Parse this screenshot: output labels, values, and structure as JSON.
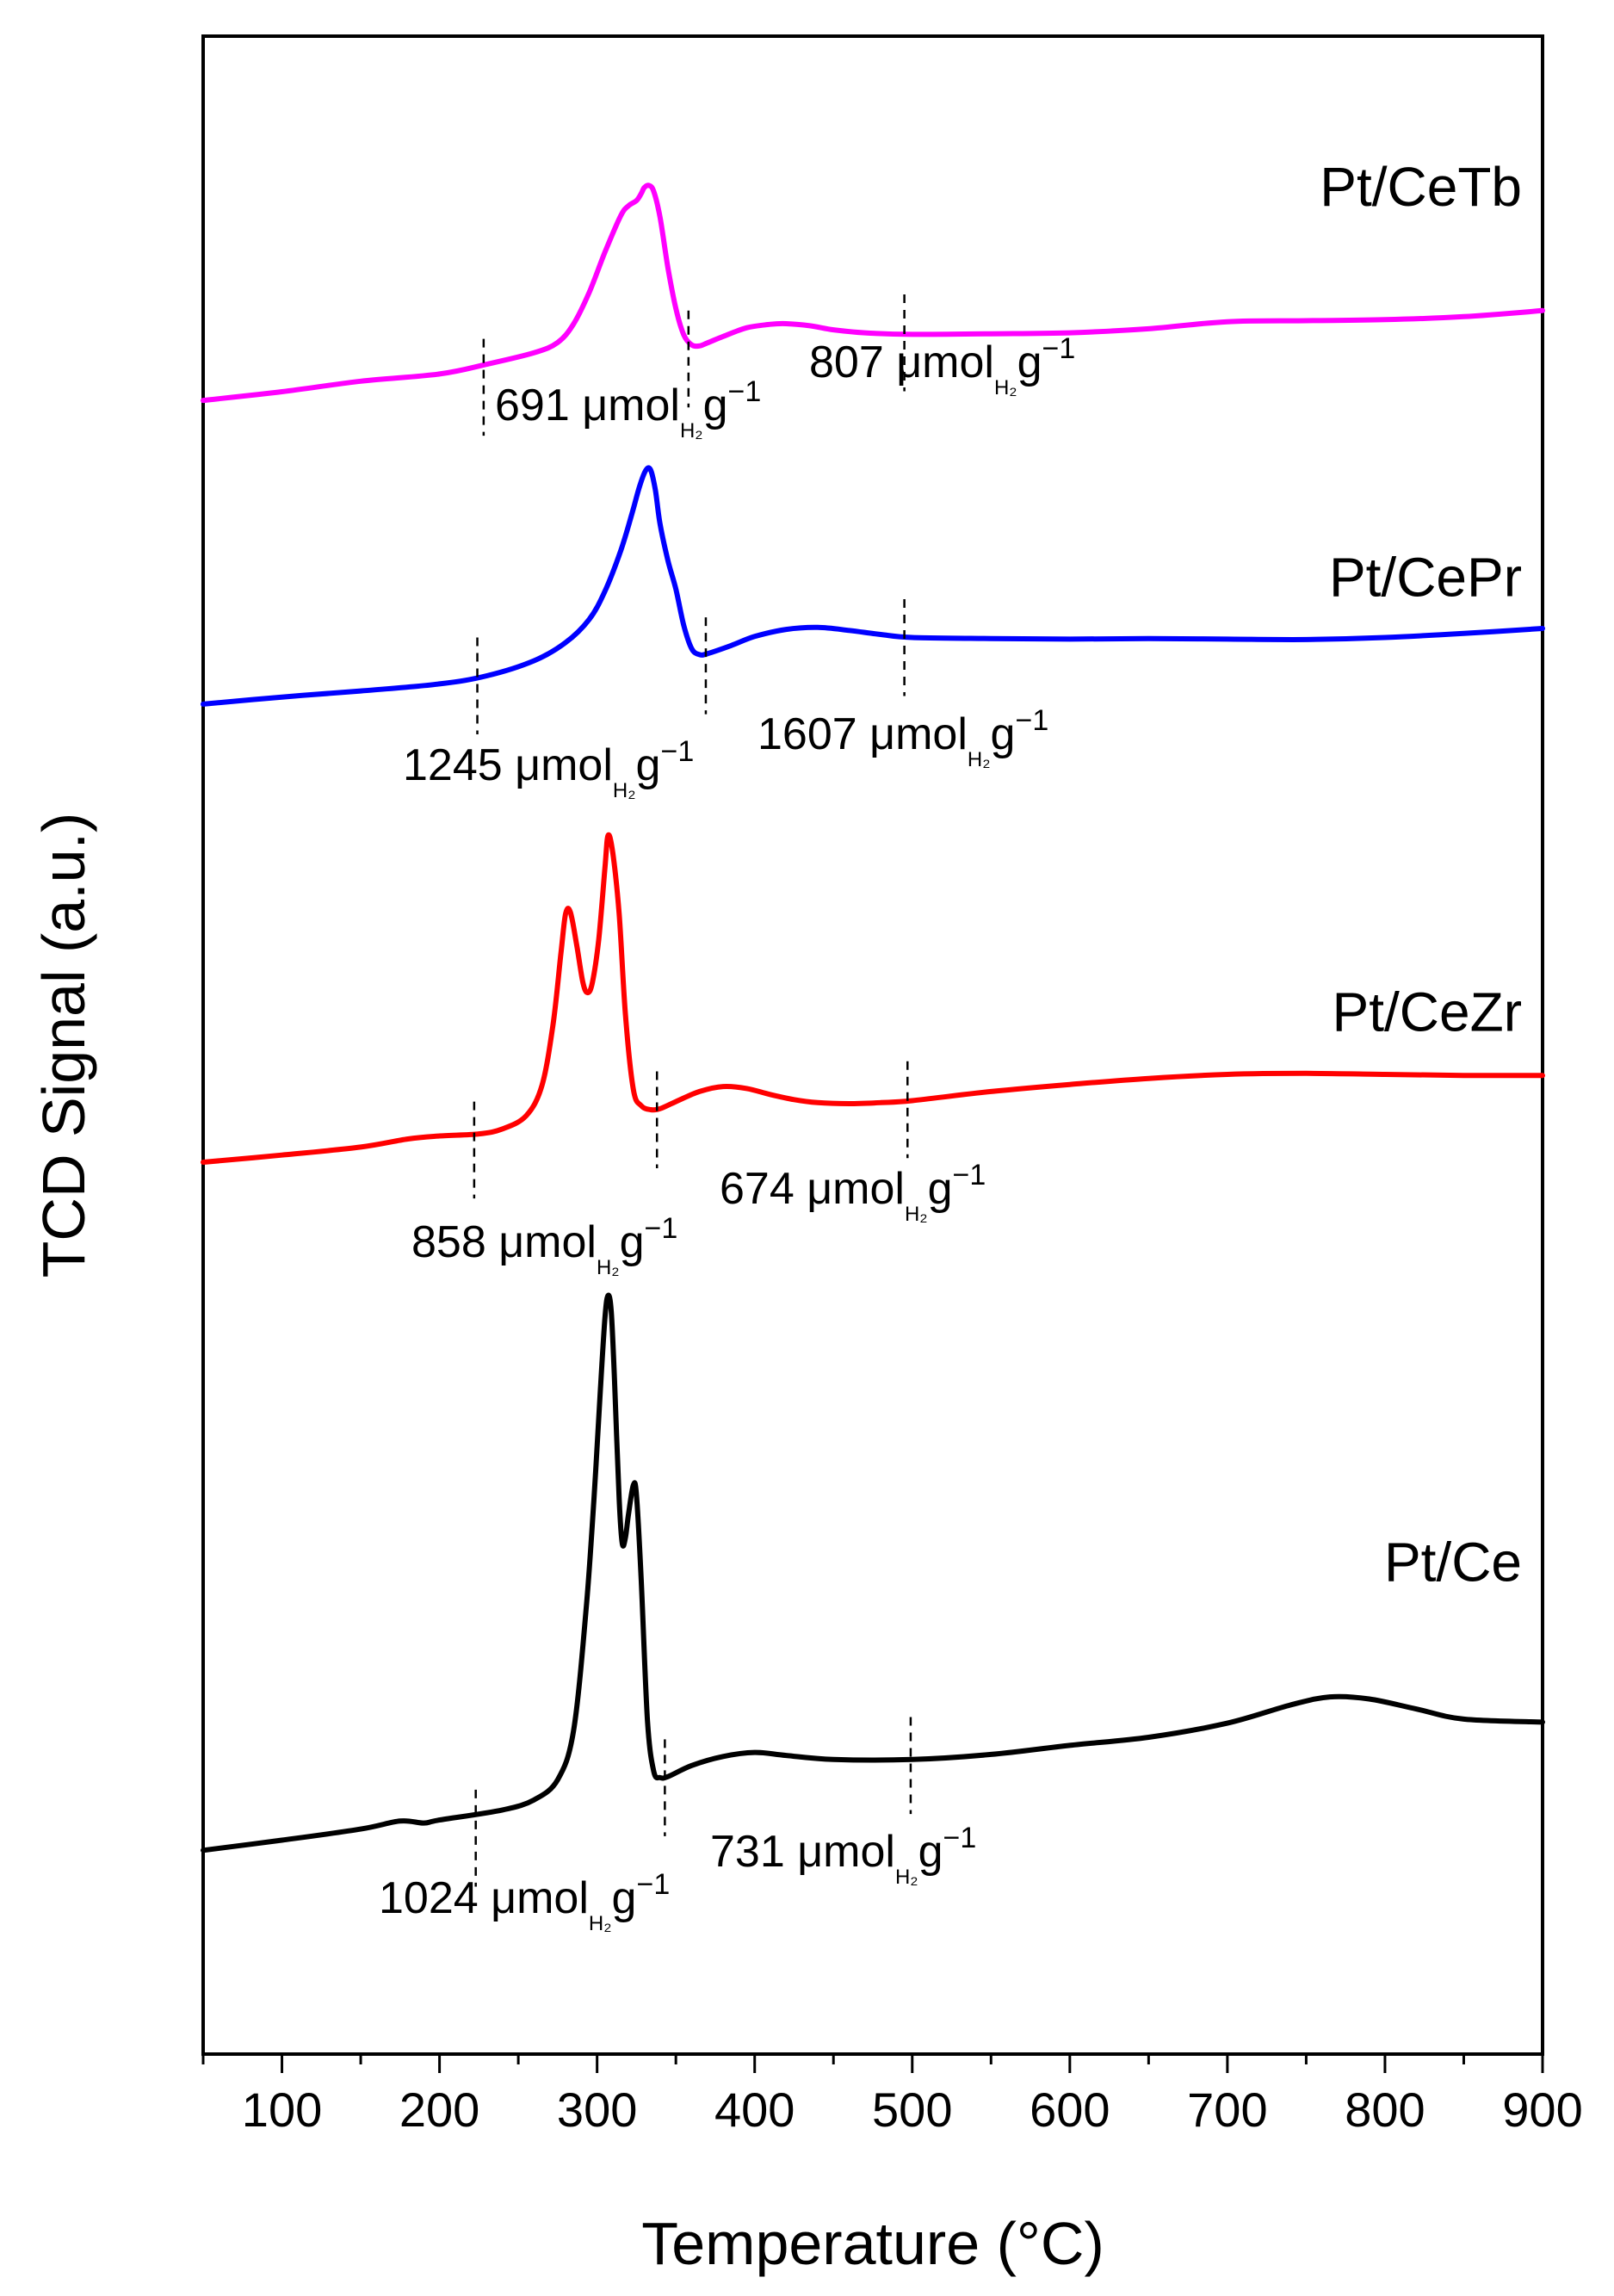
{
  "chart_data": {
    "type": "line",
    "title": "",
    "xlabel": "Temperature (°C)",
    "ylabel": "TCD Signal (a.u.)",
    "xlim": [
      50,
      900
    ],
    "xticks": [
      100,
      200,
      300,
      400,
      500,
      600,
      700,
      800,
      900
    ],
    "ylim": [
      0,
      100
    ],
    "yticks": [],
    "grid": false,
    "series": [
      {
        "name": "Pt/CeTb",
        "color": "#ff00ff",
        "points": [
          [
            50,
            81.95
          ],
          [
            100,
            82.38
          ],
          [
            150,
            82.9
          ],
          [
            200,
            83.26
          ],
          [
            230,
            83.74
          ],
          [
            260,
            84.31
          ],
          [
            275,
            84.82
          ],
          [
            285,
            85.73
          ],
          [
            295,
            87.3
          ],
          [
            305,
            89.3
          ],
          [
            315,
            91.1
          ],
          [
            320,
            91.6
          ],
          [
            325,
            91.85
          ],
          [
            328,
            92.2
          ],
          [
            330,
            92.5
          ],
          [
            333,
            92.6
          ],
          [
            336,
            92.3
          ],
          [
            340,
            91.0
          ],
          [
            345,
            88.5
          ],
          [
            350,
            86.5
          ],
          [
            355,
            85.2
          ],
          [
            360,
            84.7
          ],
          [
            365,
            84.65
          ],
          [
            370,
            84.8
          ],
          [
            380,
            85.12
          ],
          [
            395,
            85.55
          ],
          [
            410,
            85.72
          ],
          [
            420,
            85.75
          ],
          [
            435,
            85.65
          ],
          [
            450,
            85.45
          ],
          [
            470,
            85.3
          ],
          [
            500,
            85.22
          ],
          [
            550,
            85.25
          ],
          [
            600,
            85.3
          ],
          [
            650,
            85.5
          ],
          [
            700,
            85.85
          ],
          [
            750,
            85.9
          ],
          [
            800,
            85.95
          ],
          [
            850,
            86.1
          ],
          [
            900,
            86.4
          ]
        ],
        "label_lines": [
          [
            "691 μmol",
            "H₂",
            "g",
            "−1"
          ],
          [
            "807 μmol",
            "H₂",
            "g",
            "−1"
          ]
        ]
      },
      {
        "name": "Pt/CePr",
        "color": "#0000ff",
        "points": [
          [
            50,
            66.9
          ],
          [
            100,
            67.25
          ],
          [
            150,
            67.55
          ],
          [
            200,
            67.9
          ],
          [
            230,
            68.3
          ],
          [
            260,
            69.05
          ],
          [
            280,
            69.95
          ],
          [
            295,
            71.1
          ],
          [
            305,
            72.5
          ],
          [
            315,
            74.5
          ],
          [
            322,
            76.3
          ],
          [
            327,
            77.7
          ],
          [
            331,
            78.5
          ],
          [
            334,
            78.5
          ],
          [
            337,
            77.5
          ],
          [
            340,
            75.8
          ],
          [
            345,
            74.0
          ],
          [
            350,
            72.6
          ],
          [
            355,
            70.8
          ],
          [
            360,
            69.65
          ],
          [
            365,
            69.35
          ],
          [
            370,
            69.4
          ],
          [
            385,
            69.8
          ],
          [
            400,
            70.25
          ],
          [
            420,
            70.6
          ],
          [
            440,
            70.7
          ],
          [
            460,
            70.55
          ],
          [
            480,
            70.35
          ],
          [
            500,
            70.2
          ],
          [
            550,
            70.15
          ],
          [
            600,
            70.12
          ],
          [
            650,
            70.15
          ],
          [
            700,
            70.12
          ],
          [
            750,
            70.1
          ],
          [
            800,
            70.2
          ],
          [
            850,
            70.4
          ],
          [
            900,
            70.65
          ]
        ],
        "label_lines": [
          [
            "1245 μmol",
            "H₂",
            "g",
            "−1"
          ],
          [
            "1607 μmol",
            "H₂",
            "g",
            "−1"
          ]
        ]
      },
      {
        "name": "Pt/CeZr",
        "color": "#ff0000",
        "points": [
          [
            50,
            44.2
          ],
          [
            100,
            44.55
          ],
          [
            150,
            44.95
          ],
          [
            180,
            45.35
          ],
          [
            200,
            45.5
          ],
          [
            225,
            45.6
          ],
          [
            240,
            45.85
          ],
          [
            255,
            46.5
          ],
          [
            265,
            48.0
          ],
          [
            272,
            51.0
          ],
          [
            277,
            54.5
          ],
          [
            280,
            56.5
          ],
          [
            283,
            56.6
          ],
          [
            287,
            55.0
          ],
          [
            291,
            53.1
          ],
          [
            294,
            52.6
          ],
          [
            297,
            53.1
          ],
          [
            301,
            55.2
          ],
          [
            305,
            58.8
          ],
          [
            307,
            60.4
          ],
          [
            310,
            59.5
          ],
          [
            314,
            56.5
          ],
          [
            318,
            51.5
          ],
          [
            323,
            47.8
          ],
          [
            328,
            47.0
          ],
          [
            334,
            46.8
          ],
          [
            340,
            46.85
          ],
          [
            350,
            47.2
          ],
          [
            365,
            47.7
          ],
          [
            380,
            47.95
          ],
          [
            395,
            47.85
          ],
          [
            410,
            47.55
          ],
          [
            425,
            47.3
          ],
          [
            440,
            47.15
          ],
          [
            460,
            47.1
          ],
          [
            480,
            47.15
          ],
          [
            500,
            47.25
          ],
          [
            550,
            47.7
          ],
          [
            600,
            48.05
          ],
          [
            650,
            48.35
          ],
          [
            700,
            48.55
          ],
          [
            750,
            48.6
          ],
          [
            800,
            48.55
          ],
          [
            850,
            48.5
          ],
          [
            900,
            48.5
          ]
        ],
        "label_lines": [
          [
            "858 μmol",
            "H₂",
            "g",
            "−1"
          ],
          [
            "674 μmol",
            "H₂",
            "g",
            "−1"
          ]
        ]
      },
      {
        "name": "Pt/Ce",
        "color": "#000000",
        "points": [
          [
            50,
            10.1
          ],
          [
            100,
            10.6
          ],
          [
            150,
            11.15
          ],
          [
            175,
            11.55
          ],
          [
            190,
            11.45
          ],
          [
            200,
            11.6
          ],
          [
            240,
            12.1
          ],
          [
            260,
            12.6
          ],
          [
            275,
            13.6
          ],
          [
            285,
            16.0
          ],
          [
            293,
            22.0
          ],
          [
            298,
            27.5
          ],
          [
            302,
            32.8
          ],
          [
            305,
            36.5
          ],
          [
            307,
            37.6
          ],
          [
            309,
            36.8
          ],
          [
            311,
            33.5
          ],
          [
            314,
            27.5
          ],
          [
            316,
            25.3
          ],
          [
            318,
            25.6
          ],
          [
            320,
            26.8
          ],
          [
            323,
            28.2
          ],
          [
            325,
            27.7
          ],
          [
            328,
            23.5
          ],
          [
            332,
            16.5
          ],
          [
            336,
            14.0
          ],
          [
            340,
            13.7
          ],
          [
            345,
            13.75
          ],
          [
            360,
            14.3
          ],
          [
            380,
            14.75
          ],
          [
            400,
            14.95
          ],
          [
            420,
            14.8
          ],
          [
            450,
            14.6
          ],
          [
            500,
            14.6
          ],
          [
            550,
            14.85
          ],
          [
            600,
            15.3
          ],
          [
            650,
            15.7
          ],
          [
            700,
            16.4
          ],
          [
            740,
            17.3
          ],
          [
            765,
            17.7
          ],
          [
            790,
            17.6
          ],
          [
            820,
            17.1
          ],
          [
            850,
            16.6
          ],
          [
            900,
            16.45
          ]
        ],
        "label_lines": [
          [
            "1024 μmol",
            "H₂",
            "g",
            "−1"
          ],
          [
            "731 μmol",
            "H₂",
            "g",
            "−1"
          ]
        ]
      }
    ],
    "markers": [
      {
        "series": "Pt/CeTb",
        "x": [
          228,
          358,
          495
        ],
        "y": [
          82.6,
          84.0,
          84.8
        ],
        "dy": 2.4
      },
      {
        "series": "Pt/CePr",
        "x": [
          224,
          369,
          495
        ],
        "y": [
          67.8,
          68.8,
          69.7
        ],
        "dy": 2.4
      },
      {
        "series": "Pt/CeZr",
        "x": [
          222,
          338,
          497
        ],
        "y": [
          44.8,
          46.3,
          46.8
        ],
        "dy": 2.4
      },
      {
        "series": "Pt/Ce",
        "x": [
          223,
          343,
          499
        ],
        "y": [
          10.7,
          13.2,
          14.3
        ],
        "dy": 2.4
      }
    ]
  }
}
